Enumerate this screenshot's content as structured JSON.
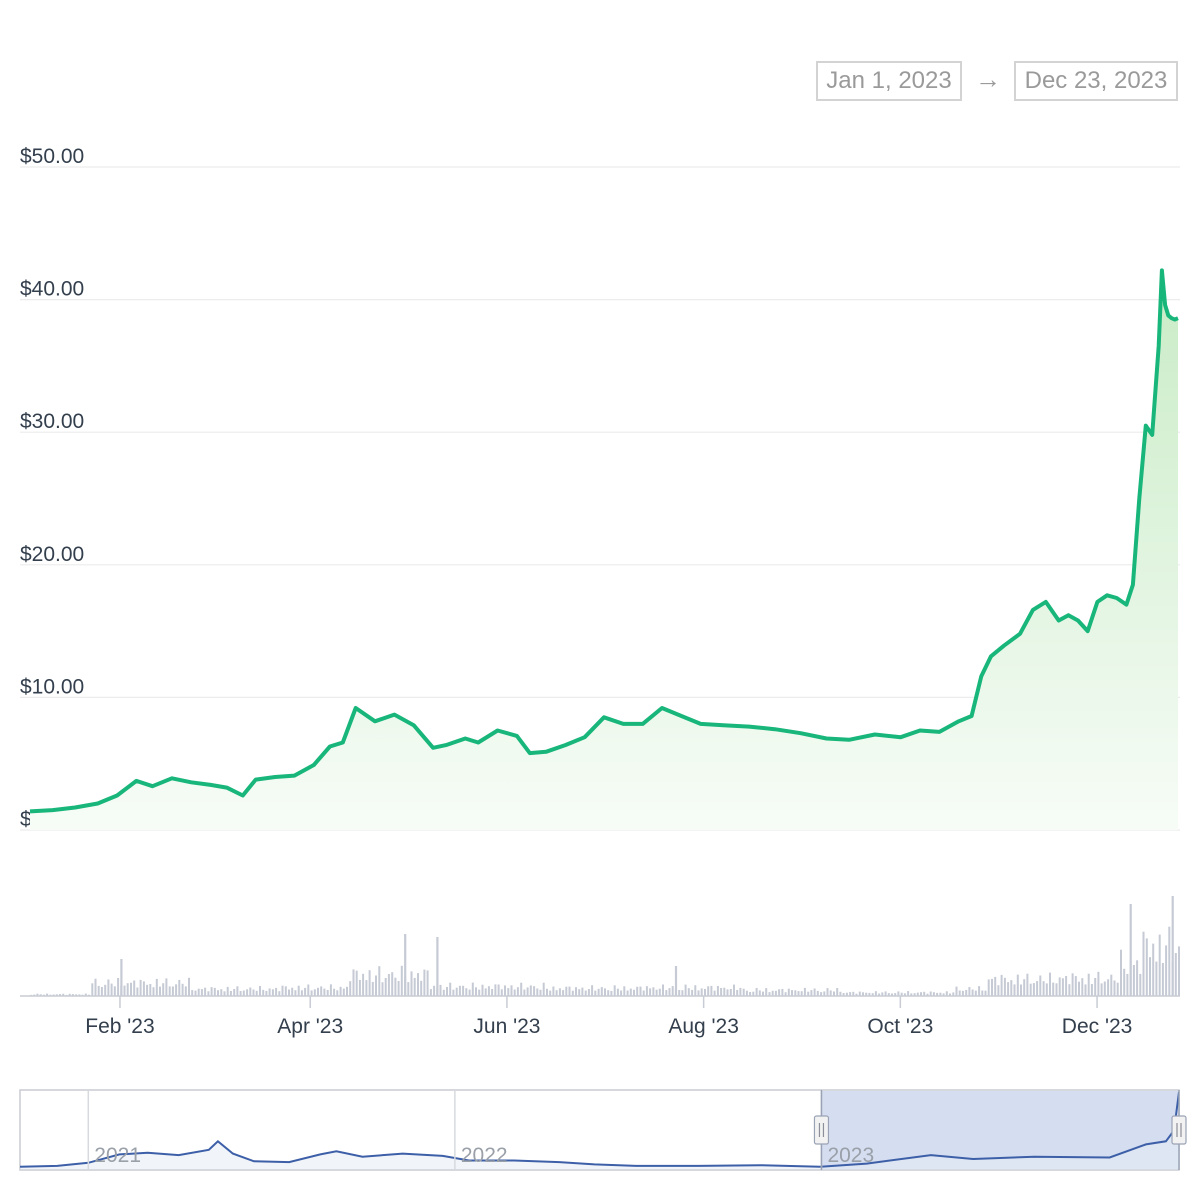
{
  "range_selector": {
    "start": "Jan 1, 2023",
    "arrow": "→",
    "end": "Dec 23, 2023"
  },
  "colors": {
    "price_line": "#18b67a",
    "price_area_top": "#c9ecc6",
    "price_area_bottom": "#f7fcf7",
    "volume_bar": "#c5cad4",
    "navigator_line": "#3d5fa8",
    "navigator_mask": "#d3dbef",
    "grid": "#ececec"
  },
  "chart_data": [
    {
      "type": "line",
      "name": "price",
      "title": "",
      "xlabel": "",
      "ylabel": "",
      "ylim": [
        0,
        50
      ],
      "y_tick_labels": [
        "$0.00",
        "$10.00",
        "$20.00",
        "$30.00",
        "$40.00",
        "$50.00"
      ],
      "y_tick_values": [
        0,
        10,
        20,
        30,
        40,
        50
      ],
      "x_tick_labels": [
        "Feb '23",
        "Apr '23",
        "Jun '23",
        "Aug '23",
        "Oct '23",
        "Dec '23"
      ],
      "x_tick_dates": [
        "2023-02-01",
        "2023-04-01",
        "2023-06-01",
        "2023-08-01",
        "2023-10-01",
        "2023-12-01"
      ],
      "xlim": [
        "2023-01-01",
        "2023-12-23"
      ],
      "grid": true,
      "x": [
        "2023-01-01",
        "2023-01-08",
        "2023-01-15",
        "2023-01-22",
        "2023-01-28",
        "2023-02-03",
        "2023-02-08",
        "2023-02-14",
        "2023-02-20",
        "2023-02-26",
        "2023-03-03",
        "2023-03-08",
        "2023-03-12",
        "2023-03-18",
        "2023-03-24",
        "2023-03-30",
        "2023-04-04",
        "2023-04-08",
        "2023-04-12",
        "2023-04-18",
        "2023-04-24",
        "2023-04-30",
        "2023-05-06",
        "2023-05-10",
        "2023-05-16",
        "2023-05-20",
        "2023-05-26",
        "2023-06-01",
        "2023-06-05",
        "2023-06-10",
        "2023-06-16",
        "2023-06-22",
        "2023-06-28",
        "2023-07-04",
        "2023-07-10",
        "2023-07-16",
        "2023-07-22",
        "2023-07-28",
        "2023-08-04",
        "2023-08-12",
        "2023-08-20",
        "2023-08-28",
        "2023-09-05",
        "2023-09-12",
        "2023-09-20",
        "2023-09-28",
        "2023-10-04",
        "2023-10-10",
        "2023-10-16",
        "2023-10-20",
        "2023-10-23",
        "2023-10-26",
        "2023-10-30",
        "2023-11-04",
        "2023-11-08",
        "2023-11-12",
        "2023-11-16",
        "2023-11-19",
        "2023-11-22",
        "2023-11-25",
        "2023-11-28",
        "2023-12-01",
        "2023-12-04",
        "2023-12-07",
        "2023-12-09",
        "2023-12-11",
        "2023-12-13",
        "2023-12-15",
        "2023-12-17",
        "2023-12-18",
        "2023-12-19",
        "2023-12-20",
        "2023-12-21",
        "2023-12-22",
        "2023-12-23"
      ],
      "values": [
        1.4,
        1.5,
        1.7,
        2.0,
        2.6,
        3.7,
        3.3,
        3.9,
        3.6,
        3.4,
        3.2,
        2.6,
        3.8,
        4.0,
        4.1,
        4.9,
        6.3,
        6.6,
        9.2,
        8.2,
        8.7,
        7.9,
        6.2,
        6.4,
        6.9,
        6.6,
        7.5,
        7.1,
        5.8,
        5.9,
        6.4,
        7.0,
        8.5,
        8.0,
        8.0,
        9.2,
        8.6,
        8.0,
        7.9,
        7.8,
        7.6,
        7.3,
        6.9,
        6.8,
        7.2,
        7.0,
        7.5,
        7.4,
        8.2,
        8.6,
        11.6,
        13.1,
        13.9,
        14.8,
        16.6,
        17.2,
        15.8,
        16.2,
        15.8,
        15.0,
        17.2,
        17.7,
        17.5,
        17.0,
        18.5,
        25.0,
        30.5,
        29.8,
        36.5,
        42.2,
        39.6,
        38.8,
        38.6,
        38.5,
        38.6
      ]
    },
    {
      "type": "bar",
      "name": "volume",
      "title": "",
      "xlabel": "",
      "ylabel": "",
      "x_range": [
        "2023-01-01",
        "2023-12-23"
      ],
      "segments": [
        {
          "from": "2023-01-01",
          "to": "2023-01-20",
          "level": 0.03
        },
        {
          "from": "2023-01-20",
          "to": "2023-02-20",
          "level": 0.22
        },
        {
          "from": "2023-02-20",
          "to": "2023-03-20",
          "level": 0.12
        },
        {
          "from": "2023-03-20",
          "to": "2023-04-10",
          "level": 0.14
        },
        {
          "from": "2023-04-10",
          "to": "2023-05-05",
          "level": 0.36
        },
        {
          "from": "2023-05-05",
          "to": "2023-06-10",
          "level": 0.16
        },
        {
          "from": "2023-06-10",
          "to": "2023-07-10",
          "level": 0.13
        },
        {
          "from": "2023-07-10",
          "to": "2023-08-10",
          "level": 0.14
        },
        {
          "from": "2023-08-10",
          "to": "2023-09-10",
          "level": 0.1
        },
        {
          "from": "2023-09-10",
          "to": "2023-10-15",
          "level": 0.06
        },
        {
          "from": "2023-10-15",
          "to": "2023-10-25",
          "level": 0.12
        },
        {
          "from": "2023-10-25",
          "to": "2023-11-15",
          "level": 0.28
        },
        {
          "from": "2023-11-15",
          "to": "2023-12-05",
          "level": 0.3
        },
        {
          "from": "2023-12-05",
          "to": "2023-12-12",
          "level": 0.55
        },
        {
          "from": "2023-12-12",
          "to": "2023-12-23",
          "level": 0.85
        }
      ],
      "spikes": [
        {
          "date": "2023-01-29",
          "level": 0.37
        },
        {
          "date": "2023-04-27",
          "level": 0.62
        },
        {
          "date": "2023-05-07",
          "level": 0.59
        },
        {
          "date": "2023-07-20",
          "level": 0.3
        },
        {
          "date": "2023-12-08",
          "level": 0.92
        },
        {
          "date": "2023-12-21",
          "level": 1.0
        }
      ]
    },
    {
      "type": "area",
      "name": "navigator",
      "title": "",
      "xlabel": "",
      "ylabel": "",
      "x_tick_labels": [
        "2021",
        "2022",
        "2023"
      ],
      "x_tick_dates": [
        "2021-01-01",
        "2022-01-01",
        "2023-01-01"
      ],
      "xlim": [
        "2020-10-25",
        "2023-12-23"
      ],
      "selected_range": [
        "2023-01-01",
        "2023-12-23"
      ],
      "x": [
        "2020-10-25",
        "2020-12-01",
        "2021-01-01",
        "2021-02-01",
        "2021-03-01",
        "2021-04-01",
        "2021-05-01",
        "2021-05-10",
        "2021-05-25",
        "2021-06-15",
        "2021-07-20",
        "2021-08-20",
        "2021-09-05",
        "2021-10-01",
        "2021-11-10",
        "2021-12-20",
        "2022-01-15",
        "2022-03-01",
        "2022-04-15",
        "2022-05-20",
        "2022-07-01",
        "2022-09-01",
        "2022-11-01",
        "2022-12-31",
        "2023-02-15",
        "2023-04-20",
        "2023-06-01",
        "2023-08-01",
        "2023-10-15",
        "2023-11-20",
        "2023-12-10",
        "2023-12-18",
        "2023-12-23"
      ],
      "values": [
        1.5,
        2.0,
        4.0,
        9.5,
        10.5,
        9.0,
        12.5,
        18.0,
        10.0,
        5.0,
        4.5,
        9.5,
        11.5,
        8.0,
        10.0,
        8.5,
        5.5,
        5.5,
        4.5,
        3.0,
        2.0,
        2.0,
        2.5,
        1.5,
        3.5,
        9.0,
        6.5,
        8.0,
        7.5,
        16.0,
        18.0,
        25.0,
        50.0
      ]
    }
  ]
}
